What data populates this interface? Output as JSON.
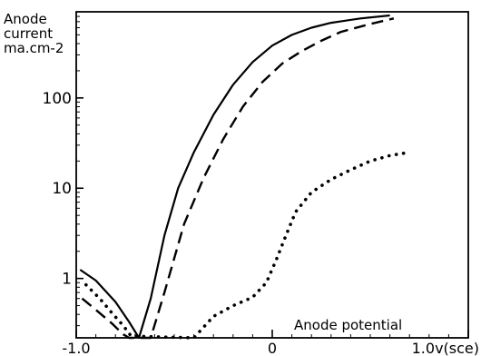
{
  "chart_data": {
    "type": "line",
    "title": "",
    "ylabel_lines": [
      "Anode",
      "current",
      "ma.cm-2"
    ],
    "xlabel": "Anode potential",
    "y_scale": "log",
    "xlim": [
      -1.0,
      1.0
    ],
    "ylim": [
      0.22,
      900
    ],
    "x_ticks": [
      {
        "value": -1.0,
        "label": "-1.0"
      },
      {
        "value": 0.0,
        "label": "0"
      },
      {
        "value": 1.0,
        "label": "1.0v(sce)"
      }
    ],
    "y_ticks": [
      {
        "value": 1,
        "label": "1"
      },
      {
        "value": 10,
        "label": "10"
      },
      {
        "value": 100,
        "label": "100"
      }
    ],
    "grid": false,
    "series": [
      {
        "style": "solid",
        "points": [
          [
            -0.98,
            1.25
          ],
          [
            -0.9,
            0.95
          ],
          [
            -0.8,
            0.55
          ],
          [
            -0.73,
            0.33
          ],
          [
            -0.68,
            0.22
          ],
          [
            -0.62,
            0.6
          ],
          [
            -0.55,
            3
          ],
          [
            -0.48,
            10
          ],
          [
            -0.4,
            25
          ],
          [
            -0.3,
            65
          ],
          [
            -0.2,
            140
          ],
          [
            -0.1,
            250
          ],
          [
            0.0,
            380
          ],
          [
            0.1,
            500
          ],
          [
            0.2,
            600
          ],
          [
            0.3,
            680
          ],
          [
            0.45,
            760
          ],
          [
            0.6,
            820
          ]
        ]
      },
      {
        "style": "dashed",
        "points": [
          [
            -0.97,
            0.6
          ],
          [
            -0.9,
            0.45
          ],
          [
            -0.82,
            0.32
          ],
          [
            -0.76,
            0.24
          ],
          [
            -0.73,
            0.22
          ],
          [
            -0.62,
            0.22
          ],
          [
            -0.55,
            0.7
          ],
          [
            -0.45,
            4
          ],
          [
            -0.35,
            13
          ],
          [
            -0.25,
            35
          ],
          [
            -0.15,
            80
          ],
          [
            -0.05,
            150
          ],
          [
            0.05,
            240
          ],
          [
            0.15,
            330
          ],
          [
            0.25,
            430
          ],
          [
            0.35,
            540
          ],
          [
            0.5,
            660
          ],
          [
            0.62,
            760
          ]
        ]
      },
      {
        "style": "dotted",
        "points": [
          [
            -0.95,
            0.85
          ],
          [
            -0.88,
            0.6
          ],
          [
            -0.82,
            0.42
          ],
          [
            -0.76,
            0.3
          ],
          [
            -0.72,
            0.23
          ],
          [
            -0.4,
            0.22
          ],
          [
            -0.3,
            0.38
          ],
          [
            -0.2,
            0.5
          ],
          [
            -0.1,
            0.62
          ],
          [
            -0.03,
            0.9
          ],
          [
            0.02,
            1.6
          ],
          [
            0.07,
            3
          ],
          [
            0.12,
            5.5
          ],
          [
            0.2,
            9
          ],
          [
            0.3,
            12.5
          ],
          [
            0.4,
            16
          ],
          [
            0.5,
            20
          ],
          [
            0.6,
            23
          ],
          [
            0.7,
            25
          ]
        ]
      }
    ]
  }
}
